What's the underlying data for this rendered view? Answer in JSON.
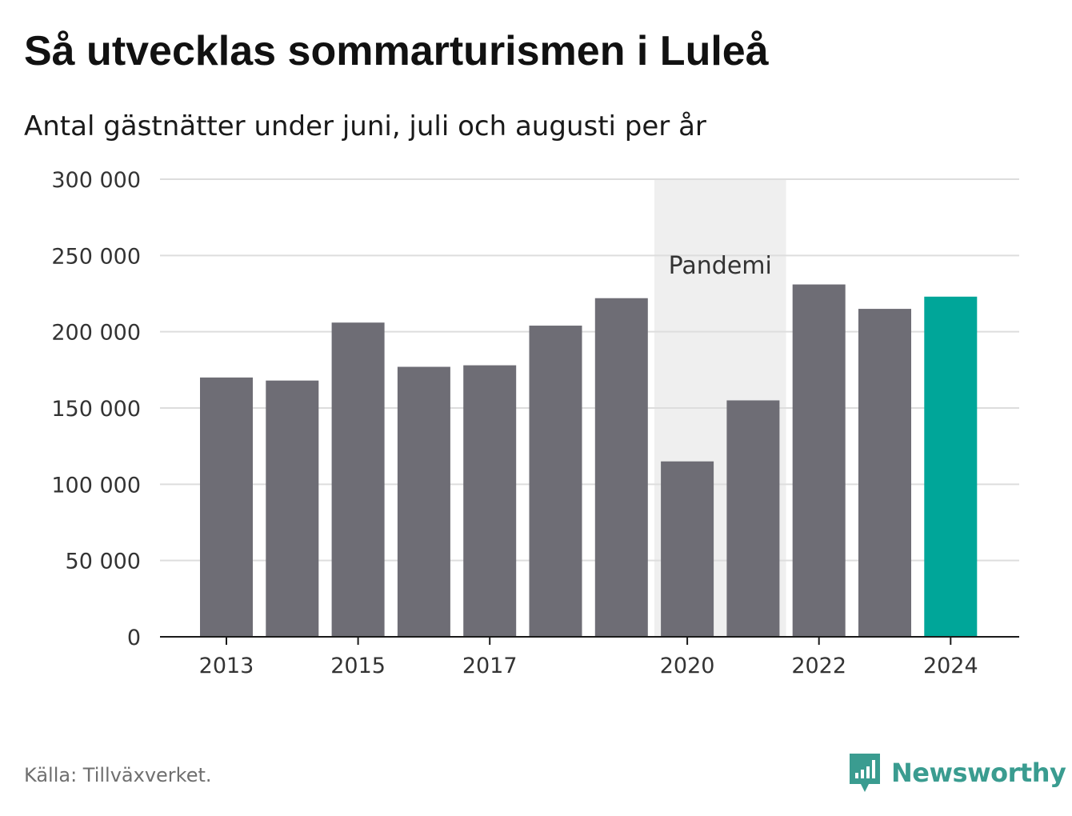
{
  "title": "Så utvecklas sommarturismen i Luleå",
  "subtitle": "Antal gästnätter under juni, juli och augusti per år",
  "source": "Källa: Tillväxverket.",
  "brand": "Newsworthy",
  "colors": {
    "bar": "#6e6d75",
    "highlight": "#00a699",
    "shade": "#efefef",
    "grid": "#dddddd",
    "axis": "#1a1a1a"
  },
  "chart_data": {
    "type": "bar",
    "categories": [
      "2013",
      "2014",
      "2015",
      "2016",
      "2017",
      "2018",
      "2019",
      "2020",
      "2021",
      "2022",
      "2023",
      "2024"
    ],
    "values": [
      170000,
      168000,
      206000,
      177000,
      178000,
      204000,
      222000,
      115000,
      155000,
      231000,
      215000,
      223000
    ],
    "highlight_category": "2024",
    "x_tick_labels": [
      "2013",
      "2015",
      "2017",
      "2020",
      "2022",
      "2024"
    ],
    "y_ticks": [
      0,
      50000,
      100000,
      150000,
      200000,
      250000,
      300000
    ],
    "y_tick_labels": [
      "0",
      "50 000",
      "100 000",
      "150 000",
      "200 000",
      "250 000",
      "300 000"
    ],
    "ylim": [
      0,
      300000
    ],
    "annotation": {
      "label": "Pandemi",
      "from": "2020",
      "to": "2021"
    },
    "grid": true
  }
}
